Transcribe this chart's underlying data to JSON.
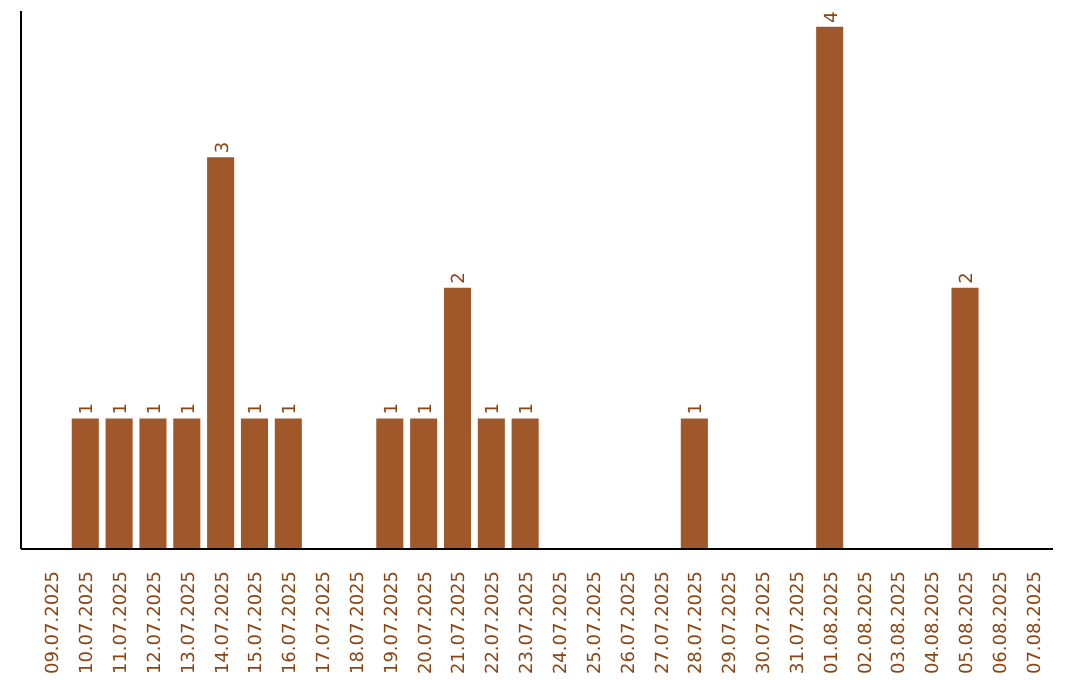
{
  "chart_data": {
    "type": "bar",
    "categories": [
      "09.07.2025",
      "10.07.2025",
      "11.07.2025",
      "12.07.2025",
      "13.07.2025",
      "14.07.2025",
      "15.07.2025",
      "16.07.2025",
      "17.07.2025",
      "18.07.2025",
      "19.07.2025",
      "20.07.2025",
      "21.07.2025",
      "22.07.2025",
      "23.07.2025",
      "24.07.2025",
      "25.07.2025",
      "26.07.2025",
      "27.07.2025",
      "28.07.2025",
      "29.07.2025",
      "30.07.2025",
      "31.07.2025",
      "01.08.2025",
      "02.08.2025",
      "03.08.2025",
      "04.08.2025",
      "05.08.2025",
      "06.08.2025",
      "07.08.2025"
    ],
    "values": [
      0,
      1,
      1,
      1,
      1,
      3,
      1,
      1,
      0,
      0,
      1,
      1,
      2,
      1,
      1,
      0,
      0,
      0,
      0,
      1,
      0,
      0,
      0,
      4,
      0,
      0,
      0,
      2,
      0,
      0
    ],
    "value_labels": [
      null,
      "1",
      "1",
      "1",
      "1",
      "3",
      "1",
      "1",
      null,
      null,
      "1",
      "1",
      "2",
      "1",
      "1",
      null,
      null,
      null,
      null,
      "1",
      null,
      null,
      null,
      "4",
      null,
      null,
      null,
      "2",
      null,
      null
    ],
    "color": "#a0572a",
    "tick_labels": "x",
    "grid": false
  }
}
